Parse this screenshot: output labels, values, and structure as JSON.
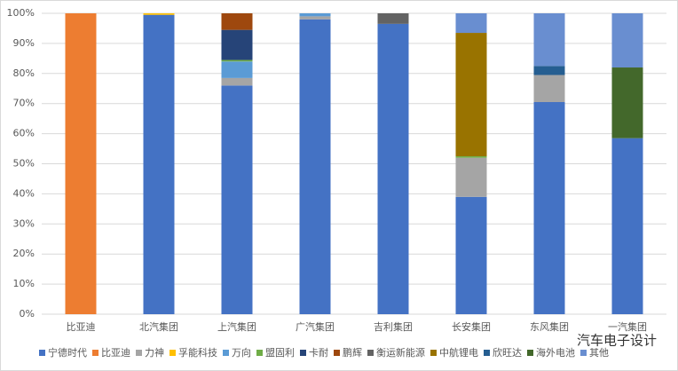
{
  "chart_data": {
    "type": "stacked_bar_100",
    "categories": [
      "比亚迪",
      "北汽集团",
      "上汽集团",
      "广汽集团",
      "吉利集团",
      "长安集团",
      "东风集团",
      "一汽集团"
    ],
    "series": [
      {
        "name": "宁德时代",
        "color": "#4472c4",
        "values": [
          0,
          99.5,
          76,
          98,
          96.5,
          39,
          70.5,
          58.5
        ]
      },
      {
        "name": "比亚迪",
        "color": "#ed7d31",
        "values": [
          100,
          0,
          0,
          0,
          0,
          0,
          0,
          0
        ]
      },
      {
        "name": "力神",
        "color": "#a5a5a5",
        "values": [
          0,
          0,
          2.5,
          1,
          0,
          13,
          9,
          0
        ]
      },
      {
        "name": "孚能科技",
        "color": "#ffc000",
        "values": [
          0,
          0.5,
          0,
          0,
          0,
          0,
          0,
          0
        ]
      },
      {
        "name": "万向",
        "color": "#5b9bd5",
        "values": [
          0,
          0,
          5.5,
          1,
          0,
          0,
          0,
          0
        ]
      },
      {
        "name": "盟固利",
        "color": "#70ad47",
        "values": [
          0,
          0,
          0.5,
          0,
          0,
          0.5,
          0,
          0
        ]
      },
      {
        "name": "卡耐",
        "color": "#264478",
        "values": [
          0,
          0,
          10,
          0,
          0,
          0,
          0,
          0
        ]
      },
      {
        "name": "鹏辉",
        "color": "#9e480e",
        "values": [
          0,
          0,
          5.5,
          0,
          0,
          0,
          0,
          0
        ]
      },
      {
        "name": "衡运新能源",
        "color": "#636363",
        "values": [
          0,
          0,
          0,
          0,
          3.5,
          0,
          0,
          0
        ]
      },
      {
        "name": "中航锂电",
        "color": "#997300",
        "values": [
          0,
          0,
          0,
          0,
          0,
          41,
          0,
          0
        ]
      },
      {
        "name": "欣旺达",
        "color": "#255e91",
        "values": [
          0,
          0,
          0,
          0,
          0,
          0,
          3,
          0
        ]
      },
      {
        "name": "海外电池",
        "color": "#43682b",
        "values": [
          0,
          0,
          0,
          0,
          0,
          0,
          0,
          23.5
        ]
      },
      {
        "name": "其他",
        "color": "#698ed0",
        "values": [
          0,
          0,
          0,
          0,
          0,
          6.5,
          17.5,
          18
        ]
      }
    ],
    "ylim": [
      0,
      100
    ],
    "yticks": [
      {
        "value": 0,
        "label": "0%"
      },
      {
        "value": 10,
        "label": "10%"
      },
      {
        "value": 20,
        "label": "20%"
      },
      {
        "value": 30,
        "label": "30%"
      },
      {
        "value": 40,
        "label": "40%"
      },
      {
        "value": 50,
        "label": "50%"
      },
      {
        "value": 60,
        "label": "60%"
      },
      {
        "value": 70,
        "label": "70%"
      },
      {
        "value": 80,
        "label": "80%"
      },
      {
        "value": 90,
        "label": "90%"
      },
      {
        "value": 100,
        "label": "100%"
      }
    ],
    "grid": true,
    "legend": "bottom",
    "watermark": "汽车电子设计"
  }
}
